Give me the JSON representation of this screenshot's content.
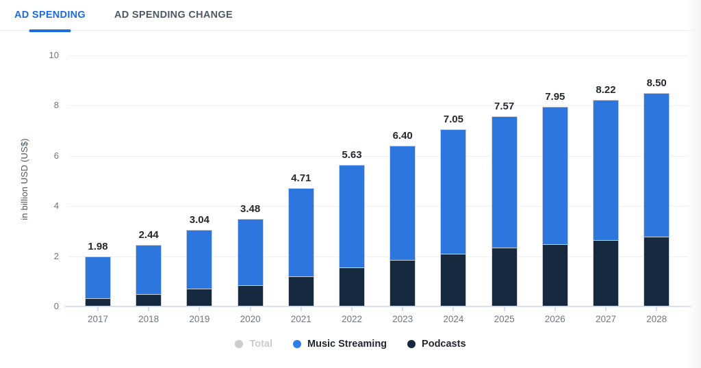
{
  "tabs": [
    {
      "label": "AD SPENDING",
      "active": true
    },
    {
      "label": "AD SPENDING CHANGE",
      "active": false
    }
  ],
  "accent_color": "#1b6ce0",
  "chart_data": {
    "type": "bar",
    "stacked": true,
    "ylabel": "in billion USD (US$)",
    "ylim": [
      0,
      10
    ],
    "yticks": [
      0,
      2,
      4,
      6,
      8,
      10
    ],
    "grid": true,
    "categories": [
      "2017",
      "2018",
      "2019",
      "2020",
      "2021",
      "2022",
      "2023",
      "2024",
      "2025",
      "2026",
      "2027",
      "2028"
    ],
    "series": [
      {
        "name": "Music Streaming",
        "color": "#2d76de",
        "values": [
          1.65,
          1.96,
          2.34,
          2.63,
          3.5,
          4.07,
          4.54,
          4.94,
          5.23,
          5.46,
          5.59,
          5.71
        ]
      },
      {
        "name": "Podcasts",
        "color": "#16293f",
        "values": [
          0.33,
          0.48,
          0.7,
          0.85,
          1.21,
          1.56,
          1.86,
          2.11,
          2.34,
          2.49,
          2.63,
          2.79
        ]
      }
    ],
    "totals_labels": [
      "1.98",
      "2.44",
      "3.04",
      "3.48",
      "4.71",
      "5.63",
      "6.40",
      "7.05",
      "7.57",
      "7.95",
      "8.22",
      "8.50"
    ],
    "legend_position": "bottom",
    "legend": [
      {
        "label": "Total",
        "color": "#cccccc",
        "disabled": true
      },
      {
        "label": "Music Streaming",
        "color": "#2e7ce5",
        "disabled": false
      },
      {
        "label": "Podcasts",
        "color": "#16293f",
        "disabled": false
      }
    ]
  }
}
